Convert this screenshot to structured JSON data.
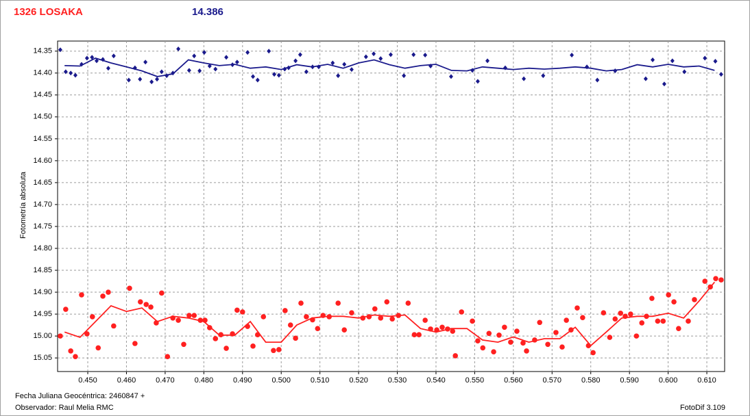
{
  "chart_data": {
    "type": "scatter",
    "title": "1326 LOSAKA",
    "title_color": "#ff2020",
    "subtitle": "14.386",
    "subtitle_color": "#1a1a8c",
    "y_label": "Fotometría absoluta",
    "x_label": "Fecha Juliana Geocéntrica: 2460847 +",
    "observer": "Observador: Raul Melia RMC",
    "software": "FotoDif 3.109",
    "grid": true,
    "y_inverted": true,
    "xlim": [
      0.4422,
      0.6146
    ],
    "ylim": [
      14.327,
      15.081
    ],
    "xticks": [
      {
        "value": 0.45,
        "label": "0.450"
      },
      {
        "value": 0.46,
        "label": "0.460"
      },
      {
        "value": 0.47,
        "label": "0.470"
      },
      {
        "value": 0.48,
        "label": "0.480"
      },
      {
        "value": 0.49,
        "label": "0.490"
      },
      {
        "value": 0.5,
        "label": "0.500"
      },
      {
        "value": 0.51,
        "label": "0.510"
      },
      {
        "value": 0.52,
        "label": "0.520"
      },
      {
        "value": 0.53,
        "label": "0.530"
      },
      {
        "value": 0.54,
        "label": "0.540"
      },
      {
        "value": 0.55,
        "label": "0.550"
      },
      {
        "value": 0.56,
        "label": "0.560"
      },
      {
        "value": 0.57,
        "label": "0.570"
      },
      {
        "value": 0.58,
        "label": "0.580"
      },
      {
        "value": 0.59,
        "label": "0.590"
      },
      {
        "value": 0.6,
        "label": "0.600"
      },
      {
        "value": 0.61,
        "label": "0.610"
      }
    ],
    "yticks": [
      14.35,
      {
        "value": 14.4,
        "label": "14.40"
      },
      14.45,
      {
        "value": 14.5,
        "label": "14.50"
      },
      14.55,
      {
        "value": 14.6,
        "label": "14.60"
      },
      14.65,
      {
        "value": 14.7,
        "label": "14.70"
      },
      14.75,
      {
        "value": 14.8,
        "label": "14.80"
      },
      14.85,
      {
        "value": 14.9,
        "label": "14.90"
      },
      14.95,
      {
        "value": 15.0,
        "label": "15.00"
      },
      15.05
    ],
    "series": [
      {
        "color": "#1a1a8c",
        "marker": "diamond",
        "x": [
          0.4429,
          0.4443,
          0.4456,
          0.4468,
          0.4484,
          0.4498,
          0.4511,
          0.4523,
          0.4539,
          0.4553,
          0.4567,
          0.4606,
          0.4622,
          0.4635,
          0.4649,
          0.4665,
          0.4679,
          0.4691,
          0.4704,
          0.472,
          0.4734,
          0.4762,
          0.4775,
          0.4789,
          0.4801,
          0.4815,
          0.483,
          0.4858,
          0.4874,
          0.4886,
          0.4913,
          0.4927,
          0.4939,
          0.4968,
          0.4982,
          0.4994,
          0.5009,
          0.5019,
          0.5037,
          0.5049,
          0.5065,
          0.5081,
          0.5097,
          0.5133,
          0.5147,
          0.5163,
          0.5182,
          0.5219,
          0.5239,
          0.5257,
          0.5283,
          0.5317,
          0.5342,
          0.5372,
          0.5386,
          0.5439,
          0.5494,
          0.5508,
          0.5533,
          0.5579,
          0.5627,
          0.5677,
          0.5751,
          0.579,
          0.5817,
          0.5863,
          0.5942,
          0.596,
          0.599,
          0.6011,
          0.6042,
          0.6095,
          0.6122,
          0.6137
        ],
        "values": [
          14.347,
          14.397,
          14.4,
          14.405,
          14.38,
          14.366,
          14.364,
          14.372,
          14.369,
          14.389,
          14.361,
          14.416,
          14.388,
          14.414,
          14.375,
          14.42,
          14.414,
          14.397,
          14.406,
          14.4,
          14.345,
          14.394,
          14.361,
          14.395,
          14.353,
          14.384,
          14.391,
          14.364,
          14.381,
          14.375,
          14.353,
          14.408,
          14.416,
          14.35,
          14.403,
          14.405,
          14.391,
          14.388,
          14.372,
          14.358,
          14.397,
          14.386,
          14.386,
          14.377,
          14.406,
          14.38,
          14.392,
          14.363,
          14.356,
          14.367,
          14.358,
          14.406,
          14.358,
          14.359,
          14.384,
          14.408,
          14.394,
          14.419,
          14.372,
          14.388,
          14.413,
          14.406,
          14.359,
          14.386,
          14.416,
          14.395,
          14.413,
          14.37,
          14.425,
          14.372,
          14.397,
          14.366,
          14.373,
          14.403
        ]
      },
      {
        "color": "#ff2020",
        "marker": "circle",
        "x": [
          0.4429,
          0.4443,
          0.4456,
          0.4468,
          0.4484,
          0.4498,
          0.4512,
          0.4527,
          0.4539,
          0.4553,
          0.4567,
          0.4608,
          0.4622,
          0.4636,
          0.4651,
          0.4663,
          0.4677,
          0.4691,
          0.4706,
          0.472,
          0.4734,
          0.4748,
          0.4762,
          0.4775,
          0.4791,
          0.4803,
          0.4815,
          0.483,
          0.4844,
          0.4858,
          0.4874,
          0.4886,
          0.49,
          0.4913,
          0.4927,
          0.4939,
          0.4954,
          0.498,
          0.4994,
          0.501,
          0.5024,
          0.5037,
          0.5051,
          0.5065,
          0.5081,
          0.5094,
          0.5108,
          0.5124,
          0.5147,
          0.5163,
          0.5182,
          0.5211,
          0.5227,
          0.5242,
          0.5257,
          0.5273,
          0.5287,
          0.5303,
          0.5328,
          0.5344,
          0.5356,
          0.5372,
          0.5386,
          0.5402,
          0.5416,
          0.543,
          0.5443,
          0.545,
          0.5466,
          0.5494,
          0.5508,
          0.5521,
          0.5537,
          0.5549,
          0.5563,
          0.5577,
          0.5593,
          0.5609,
          0.5625,
          0.5634,
          0.5655,
          0.5668,
          0.5689,
          0.571,
          0.5726,
          0.5737,
          0.5749,
          0.5765,
          0.5779,
          0.5794,
          0.5806,
          0.5833,
          0.5849,
          0.5863,
          0.5877,
          0.5889,
          0.5903,
          0.5918,
          0.5932,
          0.5944,
          0.5958,
          0.5973,
          0.5987,
          0.6001,
          0.6015,
          0.6027,
          0.6052,
          0.6068,
          0.6095,
          0.6109,
          0.6123,
          0.6137
        ],
        "values": [
          15.0,
          14.939,
          15.034,
          15.047,
          14.906,
          14.995,
          14.956,
          15.027,
          14.909,
          14.9,
          14.977,
          14.891,
          15.017,
          14.922,
          14.928,
          14.934,
          14.97,
          14.902,
          15.047,
          14.959,
          14.964,
          15.019,
          14.953,
          14.953,
          14.964,
          14.964,
          14.981,
          15.006,
          14.997,
          15.028,
          14.995,
          14.941,
          14.945,
          14.978,
          15.023,
          14.997,
          14.956,
          15.033,
          15.031,
          14.942,
          14.975,
          15.005,
          14.925,
          14.956,
          14.963,
          14.983,
          14.953,
          14.956,
          14.925,
          14.986,
          14.947,
          14.959,
          14.956,
          14.938,
          14.959,
          14.922,
          14.961,
          14.953,
          14.925,
          14.997,
          14.997,
          14.964,
          14.984,
          14.986,
          14.98,
          14.984,
          14.989,
          15.045,
          14.945,
          14.966,
          15.011,
          15.027,
          14.994,
          15.036,
          14.998,
          14.98,
          15.014,
          14.989,
          15.016,
          15.034,
          15.009,
          14.969,
          15.019,
          14.992,
          15.025,
          14.964,
          14.986,
          14.936,
          14.958,
          15.022,
          15.038,
          14.947,
          15.003,
          14.961,
          14.948,
          14.955,
          14.95,
          15.0,
          14.97,
          14.955,
          14.914,
          14.966,
          14.966,
          14.906,
          14.922,
          14.983,
          14.966,
          14.917,
          14.875,
          14.888,
          14.869,
          14.872
        ]
      }
    ],
    "trend_x": [
      0.444,
      0.448,
      0.452,
      0.456,
      0.46,
      0.464,
      0.468,
      0.472,
      0.476,
      0.48,
      0.484,
      0.488,
      0.492,
      0.496,
      0.5,
      0.504,
      0.508,
      0.512,
      0.516,
      0.52,
      0.524,
      0.528,
      0.532,
      0.536,
      0.54,
      0.544,
      0.548,
      0.552,
      0.556,
      0.56,
      0.564,
      0.568,
      0.572,
      0.576,
      0.58,
      0.584,
      0.588,
      0.592,
      0.596,
      0.6,
      0.604,
      0.608,
      0.612
    ],
    "trends": [
      {
        "color": "#1a1a8c",
        "values": [
          14.383,
          14.384,
          14.366,
          14.377,
          14.386,
          14.395,
          14.408,
          14.402,
          14.37,
          14.377,
          14.383,
          14.38,
          14.389,
          14.386,
          14.392,
          14.381,
          14.386,
          14.38,
          14.389,
          14.377,
          14.37,
          14.381,
          14.389,
          14.383,
          14.38,
          14.394,
          14.395,
          14.386,
          14.389,
          14.392,
          14.389,
          14.391,
          14.389,
          14.386,
          14.389,
          14.395,
          14.392,
          14.381,
          14.386,
          14.38,
          14.386,
          14.384,
          14.394
        ]
      },
      {
        "color": "#ff2020",
        "values": [
          14.991,
          15.003,
          14.967,
          14.931,
          14.944,
          14.936,
          14.967,
          14.955,
          14.959,
          14.967,
          14.998,
          14.998,
          14.967,
          15.014,
          15.014,
          14.975,
          14.959,
          14.955,
          14.955,
          14.959,
          14.952,
          14.955,
          14.952,
          14.983,
          14.991,
          14.983,
          14.983,
          15.009,
          15.014,
          15.002,
          15.014,
          15.006,
          15.006,
          14.98,
          15.022,
          14.991,
          14.959,
          14.955,
          14.955,
          14.948,
          14.959,
          14.92,
          14.877
        ]
      }
    ]
  }
}
